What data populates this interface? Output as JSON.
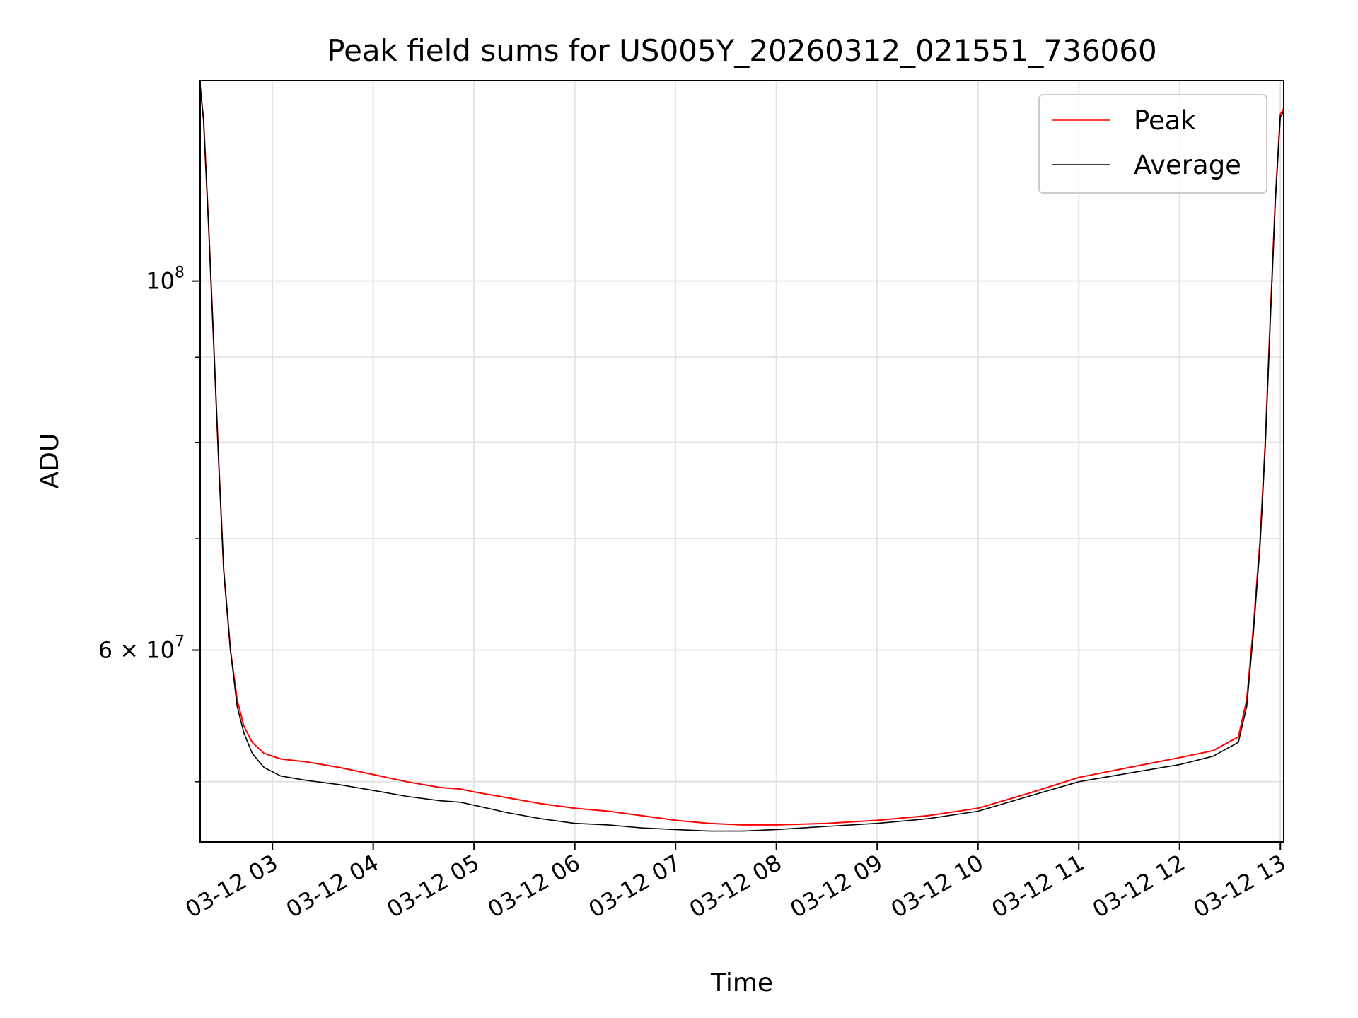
{
  "chart_data": {
    "type": "line",
    "title": "Peak field sums for US005Y_20260312_021551_736060",
    "xlabel": "Time",
    "ylabel": "ADU",
    "x_axis": "datetime",
    "xlim": [
      "2026-03-12 02:17",
      "2026-03-12 13:02"
    ],
    "xticks": [
      {
        "value": "2026-03-12 03:00",
        "label": "03-12 03"
      },
      {
        "value": "2026-03-12 04:00",
        "label": "03-12 04"
      },
      {
        "value": "2026-03-12 05:00",
        "label": "03-12 05"
      },
      {
        "value": "2026-03-12 06:00",
        "label": "03-12 06"
      },
      {
        "value": "2026-03-12 07:00",
        "label": "03-12 07"
      },
      {
        "value": "2026-03-12 08:00",
        "label": "03-12 08"
      },
      {
        "value": "2026-03-12 09:00",
        "label": "03-12 09"
      },
      {
        "value": "2026-03-12 10:00",
        "label": "03-12 10"
      },
      {
        "value": "2026-03-12 11:00",
        "label": "03-12 11"
      },
      {
        "value": "2026-03-12 12:00",
        "label": "03-12 12"
      },
      {
        "value": "2026-03-12 13:00",
        "label": "03-12 13"
      }
    ],
    "y_scale": "log",
    "ylim": [
      46000000,
      132000000
    ],
    "yticks_major": [
      {
        "value": 100000000,
        "base": "10",
        "exp": "8"
      },
      {
        "value": 60000000,
        "base": "6 × 10",
        "exp": "7"
      }
    ],
    "yticks_minor": [
      50000000,
      70000000,
      80000000,
      90000000
    ],
    "grid": true,
    "legend": "upper-right",
    "series": [
      {
        "name": "Peak",
        "color": "#ff0000",
        "x": [
          "2026-03-12 02:17",
          "2026-03-12 02:19",
          "2026-03-12 02:22",
          "2026-03-12 02:25",
          "2026-03-12 02:28",
          "2026-03-12 02:31",
          "2026-03-12 02:35",
          "2026-03-12 02:39",
          "2026-03-12 02:43",
          "2026-03-12 02:48",
          "2026-03-12 02:55",
          "2026-03-12 03:05",
          "2026-03-12 03:20",
          "2026-03-12 03:40",
          "2026-03-12 04:00",
          "2026-03-12 04:20",
          "2026-03-12 04:40",
          "2026-03-12 04:52",
          "2026-03-12 05:00",
          "2026-03-12 05:20",
          "2026-03-12 05:40",
          "2026-03-12 06:00",
          "2026-03-12 06:20",
          "2026-03-12 06:40",
          "2026-03-12 07:00",
          "2026-03-12 07:20",
          "2026-03-12 07:40",
          "2026-03-12 08:00",
          "2026-03-12 08:30",
          "2026-03-12 09:00",
          "2026-03-12 09:30",
          "2026-03-12 10:00",
          "2026-03-12 10:30",
          "2026-03-12 11:00",
          "2026-03-12 11:30",
          "2026-03-12 12:00",
          "2026-03-12 12:20",
          "2026-03-12 12:35",
          "2026-03-12 12:40",
          "2026-03-12 12:44",
          "2026-03-12 12:48",
          "2026-03-12 12:51",
          "2026-03-12 12:54",
          "2026-03-12 12:57",
          "2026-03-12 13:00",
          "2026-03-12 13:02"
        ],
        "values": [
          131000000,
          125000000,
          108000000,
          92000000,
          78000000,
          67000000,
          60000000,
          56000000,
          54000000,
          52800000,
          52000000,
          51600000,
          51400000,
          51000000,
          50500000,
          50000000,
          49600000,
          49500000,
          49300000,
          48900000,
          48500000,
          48200000,
          48000000,
          47700000,
          47400000,
          47200000,
          47100000,
          47100000,
          47200000,
          47400000,
          47700000,
          48200000,
          49200000,
          50300000,
          51000000,
          51700000,
          52200000,
          53200000,
          56000000,
          62000000,
          70000000,
          80000000,
          95000000,
          112000000,
          126000000,
          127000000
        ]
      },
      {
        "name": "Average",
        "color": "#000000",
        "x": [
          "2026-03-12 02:17",
          "2026-03-12 02:19",
          "2026-03-12 02:22",
          "2026-03-12 02:25",
          "2026-03-12 02:28",
          "2026-03-12 02:31",
          "2026-03-12 02:35",
          "2026-03-12 02:39",
          "2026-03-12 02:43",
          "2026-03-12 02:48",
          "2026-03-12 02:55",
          "2026-03-12 03:05",
          "2026-03-12 03:20",
          "2026-03-12 03:40",
          "2026-03-12 04:00",
          "2026-03-12 04:20",
          "2026-03-12 04:40",
          "2026-03-12 04:52",
          "2026-03-12 05:00",
          "2026-03-12 05:20",
          "2026-03-12 05:40",
          "2026-03-12 06:00",
          "2026-03-12 06:20",
          "2026-03-12 06:40",
          "2026-03-12 07:00",
          "2026-03-12 07:20",
          "2026-03-12 07:40",
          "2026-03-12 08:00",
          "2026-03-12 08:30",
          "2026-03-12 09:00",
          "2026-03-12 09:30",
          "2026-03-12 10:00",
          "2026-03-12 10:30",
          "2026-03-12 11:00",
          "2026-03-12 11:30",
          "2026-03-12 12:00",
          "2026-03-12 12:20",
          "2026-03-12 12:35",
          "2026-03-12 12:40",
          "2026-03-12 12:44",
          "2026-03-12 12:48",
          "2026-03-12 12:51",
          "2026-03-12 12:54",
          "2026-03-12 12:57",
          "2026-03-12 13:00",
          "2026-03-12 13:02"
        ],
        "values": [
          131000000,
          125000000,
          108000000,
          92000000,
          78000000,
          67000000,
          60000000,
          55500000,
          53500000,
          52000000,
          51000000,
          50400000,
          50100000,
          49800000,
          49400000,
          49000000,
          48700000,
          48600000,
          48400000,
          47900000,
          47500000,
          47200000,
          47100000,
          46900000,
          46800000,
          46700000,
          46700000,
          46800000,
          47000000,
          47200000,
          47500000,
          48000000,
          49000000,
          50000000,
          50600000,
          51200000,
          51800000,
          52800000,
          55500000,
          61500000,
          69500000,
          79500000,
          94500000,
          111500000,
          125500000,
          126500000
        ]
      }
    ]
  }
}
